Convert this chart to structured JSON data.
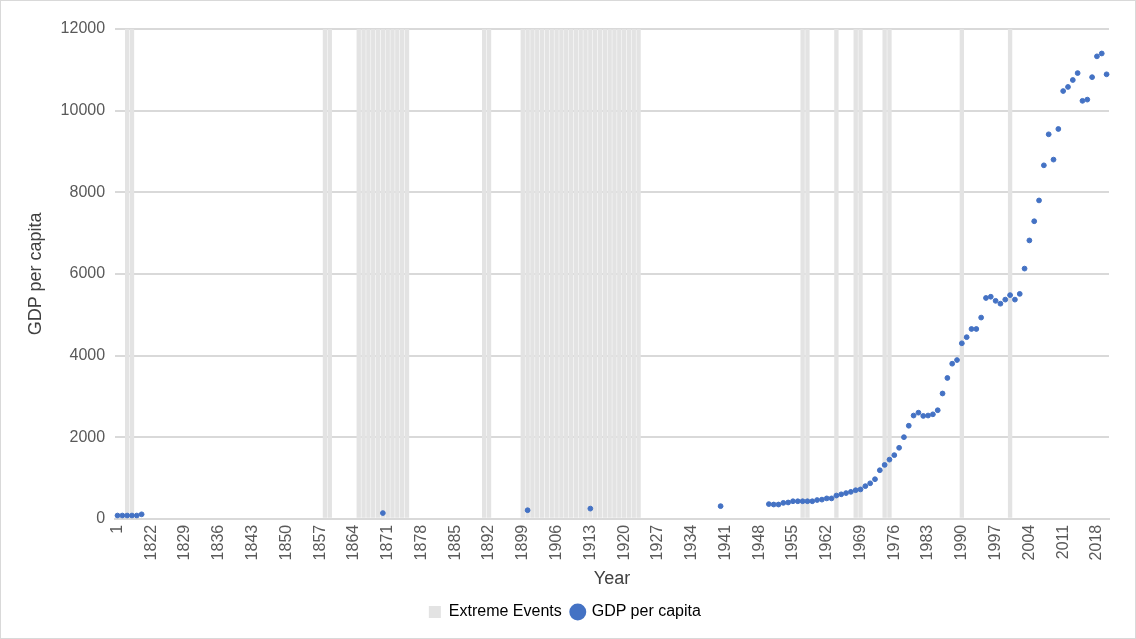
{
  "chart_data": {
    "type": "scatter",
    "xlabel": "Year",
    "ylabel": "GDP per capita",
    "categories": [
      "1",
      null,
      null,
      null,
      null,
      null,
      null,
      "1822",
      null,
      null,
      null,
      null,
      null,
      null,
      "1829",
      null,
      null,
      null,
      null,
      null,
      null,
      "1836",
      null,
      null,
      null,
      null,
      null,
      null,
      "1843",
      null,
      null,
      null,
      null,
      null,
      null,
      "1850",
      null,
      null,
      null,
      null,
      null,
      null,
      "1857",
      null,
      null,
      null,
      null,
      null,
      null,
      "1864",
      null,
      null,
      null,
      null,
      null,
      null,
      "1871",
      null,
      null,
      null,
      null,
      null,
      null,
      "1878",
      null,
      null,
      null,
      null,
      null,
      null,
      "1885",
      null,
      null,
      null,
      null,
      null,
      null,
      "1892",
      null,
      null,
      null,
      null,
      null,
      null,
      "1899",
      null,
      null,
      null,
      null,
      null,
      null,
      "1906",
      null,
      null,
      null,
      null,
      null,
      null,
      "1913",
      null,
      null,
      null,
      null,
      null,
      null,
      "1920",
      null,
      null,
      null,
      null,
      null,
      null,
      "1927",
      null,
      null,
      null,
      null,
      null,
      null,
      "1934",
      null,
      null,
      null,
      null,
      null,
      null,
      "1941",
      null,
      null,
      null,
      null,
      null,
      null,
      "1948",
      null,
      null,
      null,
      null,
      null,
      null,
      "1955",
      null,
      null,
      null,
      null,
      null,
      null,
      "1962",
      null,
      null,
      null,
      null,
      null,
      null,
      "1969",
      null,
      null,
      null,
      null,
      null,
      null,
      "1976",
      null,
      null,
      null,
      null,
      null,
      null,
      "1983",
      null,
      null,
      null,
      null,
      null,
      null,
      "1990",
      null,
      null,
      null,
      null,
      null,
      null,
      "1997",
      null,
      null,
      null,
      null,
      null,
      null,
      "2004",
      null,
      null,
      null,
      null,
      null,
      null,
      "2011",
      null,
      null,
      null,
      null,
      null,
      null,
      "2018",
      null,
      null
    ],
    "series": [
      {
        "name": "Extreme Events",
        "type": "bar",
        "color": "#e3e3e3",
        "values": [
          null,
          null,
          12000,
          12000,
          null,
          null,
          null,
          null,
          null,
          null,
          null,
          null,
          null,
          null,
          null,
          null,
          null,
          null,
          null,
          null,
          null,
          null,
          null,
          null,
          null,
          null,
          null,
          null,
          null,
          null,
          null,
          null,
          null,
          null,
          null,
          null,
          null,
          null,
          null,
          null,
          null,
          null,
          null,
          12000,
          12000,
          null,
          null,
          null,
          null,
          null,
          12000,
          12000,
          12000,
          12000,
          12000,
          12000,
          12000,
          12000,
          12000,
          12000,
          12000,
          null,
          null,
          null,
          null,
          null,
          null,
          null,
          null,
          null,
          null,
          null,
          null,
          null,
          null,
          null,
          12000,
          12000,
          null,
          null,
          null,
          null,
          null,
          null,
          12000,
          12000,
          12000,
          12000,
          12000,
          12000,
          12000,
          12000,
          12000,
          12000,
          12000,
          12000,
          12000,
          12000,
          12000,
          12000,
          12000,
          12000,
          12000,
          12000,
          12000,
          12000,
          12000,
          12000,
          12000,
          null,
          null,
          null,
          null,
          null,
          null,
          null,
          null,
          null,
          null,
          null,
          null,
          null,
          null,
          null,
          null,
          null,
          null,
          null,
          null,
          null,
          null,
          null,
          null,
          null,
          null,
          null,
          null,
          null,
          null,
          null,
          null,
          null,
          12000,
          12000,
          null,
          null,
          null,
          null,
          null,
          12000,
          null,
          null,
          null,
          12000,
          12000,
          null,
          null,
          null,
          null,
          12000,
          12000,
          null,
          null,
          null,
          null,
          null,
          null,
          null,
          null,
          null,
          null,
          null,
          null,
          null,
          null,
          12000,
          null,
          null,
          null,
          null,
          null,
          null,
          null,
          null,
          null,
          12000,
          null,
          null,
          null,
          null,
          null,
          null,
          null,
          null,
          null,
          null,
          null,
          null,
          null,
          null,
          null,
          null,
          null,
          null,
          null,
          null
        ]
      },
      {
        "name": "GDP per capita",
        "color": "#4472c4",
        "values": [
          80,
          80,
          80,
          80,
          80,
          110,
          null,
          null,
          null,
          null,
          null,
          null,
          null,
          null,
          null,
          null,
          null,
          null,
          null,
          null,
          null,
          null,
          null,
          null,
          null,
          null,
          null,
          null,
          null,
          null,
          null,
          null,
          null,
          null,
          null,
          null,
          null,
          null,
          null,
          null,
          null,
          null,
          null,
          null,
          null,
          null,
          null,
          null,
          null,
          null,
          null,
          null,
          null,
          null,
          null,
          140,
          null,
          null,
          null,
          null,
          null,
          null,
          null,
          null,
          null,
          null,
          null,
          null,
          null,
          null,
          null,
          null,
          null,
          null,
          null,
          null,
          null,
          null,
          null,
          null,
          null,
          null,
          null,
          null,
          null,
          210,
          null,
          null,
          null,
          null,
          null,
          null,
          null,
          null,
          null,
          null,
          null,
          null,
          250,
          null,
          null,
          null,
          null,
          null,
          null,
          null,
          null,
          null,
          null,
          null,
          null,
          null,
          null,
          null,
          null,
          null,
          null,
          null,
          null,
          null,
          null,
          null,
          null,
          null,
          null,
          310,
          null,
          null,
          null,
          null,
          null,
          null,
          null,
          null,
          null,
          360,
          350,
          350,
          390,
          400,
          430,
          430,
          430,
          430,
          430,
          460,
          470,
          500,
          500,
          570,
          600,
          630,
          660,
          700,
          720,
          800,
          870,
          970,
          1190,
          1320,
          1450,
          1560,
          1740,
          2000,
          2280,
          2530,
          2600,
          2520,
          2530,
          2560,
          2660,
          3070,
          3450,
          3800,
          3890,
          4300,
          4450,
          4650,
          4650,
          4930,
          5410,
          5440,
          5340,
          5270,
          5370,
          5480,
          5370,
          5510,
          6130,
          6820,
          7290,
          7800,
          8660,
          9420,
          8800,
          9550,
          10480,
          10580,
          10750,
          10920,
          10240,
          10270,
          10820,
          11330,
          11400,
          10890
        ]
      }
    ],
    "ylim": [
      0,
      12000
    ],
    "yticks": [
      0,
      2000,
      4000,
      6000,
      8000,
      10000,
      12000
    ],
    "grid": "y",
    "legend": "bottom",
    "marker": "circle"
  }
}
